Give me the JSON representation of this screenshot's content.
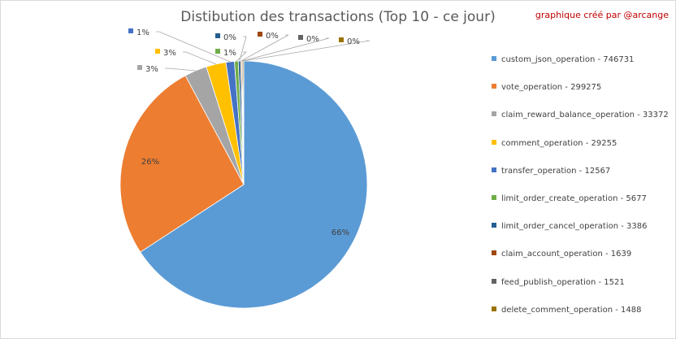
{
  "header": {
    "title": "Distibution des transactions  (Top 10 - ce jour)",
    "credit": "graphique créé par @arcange"
  },
  "chart_data": {
    "type": "pie",
    "title": "Distibution des transactions  (Top 10 - ce jour)",
    "legend_position": "right",
    "start_angle_deg": 0,
    "direction": "clockwise",
    "slices": [
      {
        "name": "custom_json_operation",
        "value": 746731,
        "label": "66%",
        "color": "#5b9bd5"
      },
      {
        "name": "vote_operation",
        "value": 299275,
        "label": "26%",
        "color": "#ed7d31"
      },
      {
        "name": "claim_reward_balance_operation",
        "value": 33372,
        "label": "3%",
        "color": "#a5a5a5"
      },
      {
        "name": "comment_operation",
        "value": 29255,
        "label": "3%",
        "color": "#ffc000"
      },
      {
        "name": "transfer_operation",
        "value": 12567,
        "label": "1%",
        "color": "#4472c4"
      },
      {
        "name": "limit_order_create_operation",
        "value": 5677,
        "label": "1%",
        "color": "#70ad47"
      },
      {
        "name": "limit_order_cancel_operation",
        "value": 3386,
        "label": "0%",
        "color": "#255e91"
      },
      {
        "name": "claim_account_operation",
        "value": 1639,
        "label": "0%",
        "color": "#9e480e"
      },
      {
        "name": "feed_publish_operation",
        "value": 1521,
        "label": "0%",
        "color": "#636363"
      },
      {
        "name": "delete_comment_operation",
        "value": 1488,
        "label": "0%",
        "color": "#997300"
      }
    ],
    "legend": [
      "custom_json_operation - 746731",
      "vote_operation - 299275",
      "claim_reward_balance_operation - 33372",
      "comment_operation - 29255",
      "transfer_operation - 12567",
      "limit_order_create_operation - 5677",
      "limit_order_cancel_operation - 3386",
      "claim_account_operation - 1639",
      "feed_publish_operation - 1521",
      "delete_comment_operation - 1488"
    ]
  }
}
